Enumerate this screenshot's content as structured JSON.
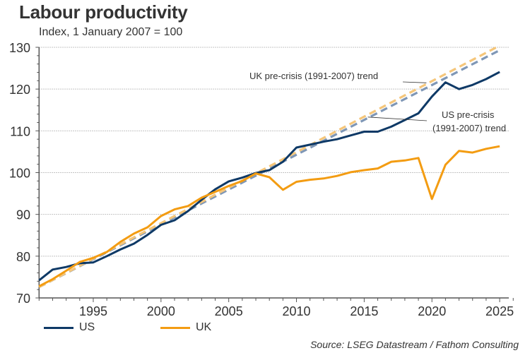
{
  "title": "Labour productivity",
  "subtitle": "Index, 1 January 2007 = 100",
  "source": "Source: LSEG Datastream / Fathom Consulting",
  "colors": {
    "us": "#0e3966",
    "uk": "#f39c12",
    "us_trend": "#7f97b6",
    "uk_trend": "#f5c67a",
    "grid": "#b0b0b0",
    "axis": "#555555"
  },
  "legend": [
    {
      "label": "US",
      "color": "#0e3966"
    },
    {
      "label": "UK",
      "color": "#f39c12"
    }
  ],
  "chart_data": {
    "type": "line",
    "title": "Labour productivity",
    "subtitle": "Index, 1 January 2007 = 100",
    "xlabel": "",
    "ylabel": "",
    "xlim": [
      1991,
      2026
    ],
    "ylim": [
      70,
      130
    ],
    "yticks": [
      70,
      80,
      90,
      100,
      110,
      120,
      130
    ],
    "xticks": [
      1995,
      2000,
      2005,
      2010,
      2015,
      2020,
      2025
    ],
    "grid": "horizontal-dotted",
    "legend_position": "bottom-left",
    "x": [
      1991,
      1992,
      1993,
      1994,
      1995,
      1996,
      1997,
      1998,
      1999,
      2000,
      2001,
      2002,
      2003,
      2004,
      2005,
      2006,
      2007,
      2008,
      2009,
      2010,
      2011,
      2012,
      2013,
      2014,
      2015,
      2016,
      2017,
      2018,
      2019,
      2020,
      2021,
      2022,
      2023,
      2024,
      2025
    ],
    "series": [
      {
        "name": "US",
        "style": "solid",
        "values": [
          74.2,
          76.8,
          77.4,
          78.3,
          78.5,
          80.0,
          81.6,
          83.0,
          85.1,
          87.5,
          88.6,
          90.8,
          93.5,
          96.0,
          97.9,
          98.8,
          99.9,
          100.6,
          102.6,
          106.0,
          106.7,
          107.4,
          108.0,
          108.9,
          109.8,
          109.8,
          111.0,
          112.6,
          114.2,
          118.2,
          121.6,
          120.0,
          121.0,
          122.4,
          124.1
        ]
      },
      {
        "name": "UK",
        "style": "solid",
        "values": [
          72.8,
          74.5,
          76.5,
          78.6,
          79.6,
          81.0,
          83.4,
          85.4,
          86.9,
          89.6,
          91.2,
          92.0,
          94.0,
          95.4,
          96.8,
          98.0,
          99.8,
          98.9,
          95.9,
          97.8,
          98.3,
          98.6,
          99.2,
          100.1,
          100.6,
          101.0,
          102.6,
          102.9,
          103.5,
          93.7,
          101.9,
          105.2,
          104.8,
          105.7,
          106.3
        ]
      },
      {
        "name": "US pre-crisis (1991-2007) trend",
        "style": "dashed",
        "x_range": [
          1991,
          2025
        ],
        "values_at_ends": [
          72.6,
          129.3
        ]
      },
      {
        "name": "UK pre-crisis (1991-2007) trend",
        "style": "dashed",
        "x_range": [
          1991,
          2025
        ],
        "values_at_ends": [
          72.6,
          130.4
        ]
      }
    ],
    "annotations": [
      {
        "text": "UK pre-crisis (1991-2007) trend",
        "points_to": {
          "x": 2021,
          "y": 121.5
        }
      },
      {
        "text_lines": [
          "US pre-crisis",
          "(1991-2007) trend"
        ],
        "points_to": {
          "x": 2016,
          "y": 113.3
        }
      }
    ]
  }
}
